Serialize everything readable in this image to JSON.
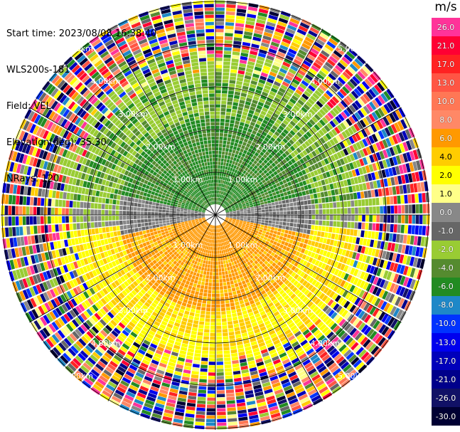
{
  "info": {
    "start_time": "Start time: 2023/08/08 16:38:40",
    "instrument": "WLS200s-181",
    "field": "Field: VEL",
    "elevation": "Elevation(deg): 35.30",
    "nrays": "NRays: 120"
  },
  "colorbar": {
    "title": "m/s",
    "entries": [
      {
        "label": "26.0",
        "color": "#ff3399"
      },
      {
        "label": "21.0",
        "color": "#ff0033"
      },
      {
        "label": "17.0",
        "color": "#ff2222"
      },
      {
        "label": "13.0",
        "color": "#ff5544"
      },
      {
        "label": "10.0",
        "color": "#ff7755"
      },
      {
        "label": "8.0",
        "color": "#ff8866"
      },
      {
        "label": "6.0",
        "color": "#ff9900"
      },
      {
        "label": "4.0",
        "color": "#ffcc00"
      },
      {
        "label": "2.0",
        "color": "#ffff00"
      },
      {
        "label": "1.0",
        "color": "#ffff88"
      },
      {
        "label": "0.0",
        "color": "#888888"
      },
      {
        "label": "-1.0",
        "color": "#666666"
      },
      {
        "label": "-2.0",
        "color": "#99cc33"
      },
      {
        "label": "-4.0",
        "color": "#558b2f"
      },
      {
        "label": "-6.0",
        "color": "#228b22"
      },
      {
        "label": "-8.0",
        "color": "#1e88c8"
      },
      {
        "label": "-10.0",
        "color": "#0033ff"
      },
      {
        "label": "-13.0",
        "color": "#0000ee"
      },
      {
        "label": "-17.0",
        "color": "#0000bb"
      },
      {
        "label": "-21.0",
        "color": "#00008b"
      },
      {
        "label": "-26.0",
        "color": "#111166"
      },
      {
        "label": "-30.0",
        "color": "#000033"
      }
    ]
  },
  "range_labels": [
    "1.00km",
    "2.00km",
    "3.00km",
    "4.00km",
    "5.00km"
  ]
}
